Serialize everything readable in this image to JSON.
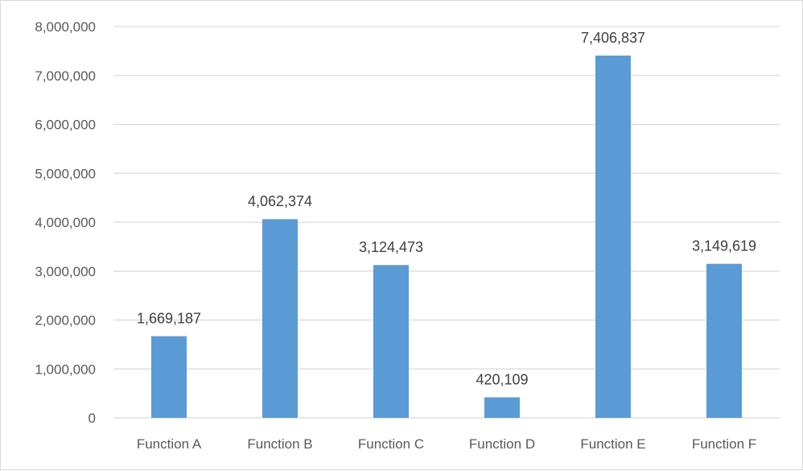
{
  "chart_data": {
    "type": "bar",
    "title": "",
    "xlabel": "",
    "ylabel": "",
    "categories": [
      "Function A",
      "Function B",
      "Function C",
      "Function D",
      "Function E",
      "Function F"
    ],
    "values": [
      1669187,
      4062374,
      3124473,
      420109,
      7406837,
      3149619
    ],
    "value_labels": [
      "1,669,187",
      "4,062,374",
      "3,124,473",
      "420,109",
      "7,406,837",
      "3,149,619"
    ],
    "ylim": [
      0,
      8000000
    ],
    "yticks": [
      0,
      1000000,
      2000000,
      3000000,
      4000000,
      5000000,
      6000000,
      7000000,
      8000000
    ],
    "ytick_labels": [
      "0",
      "1,000,000",
      "2,000,000",
      "3,000,000",
      "4,000,000",
      "5,000,000",
      "6,000,000",
      "7,000,000",
      "8,000,000"
    ],
    "grid": true,
    "legend": "none",
    "bar_color": "#5b9bd5",
    "grid_color": "#d9d9d9"
  }
}
